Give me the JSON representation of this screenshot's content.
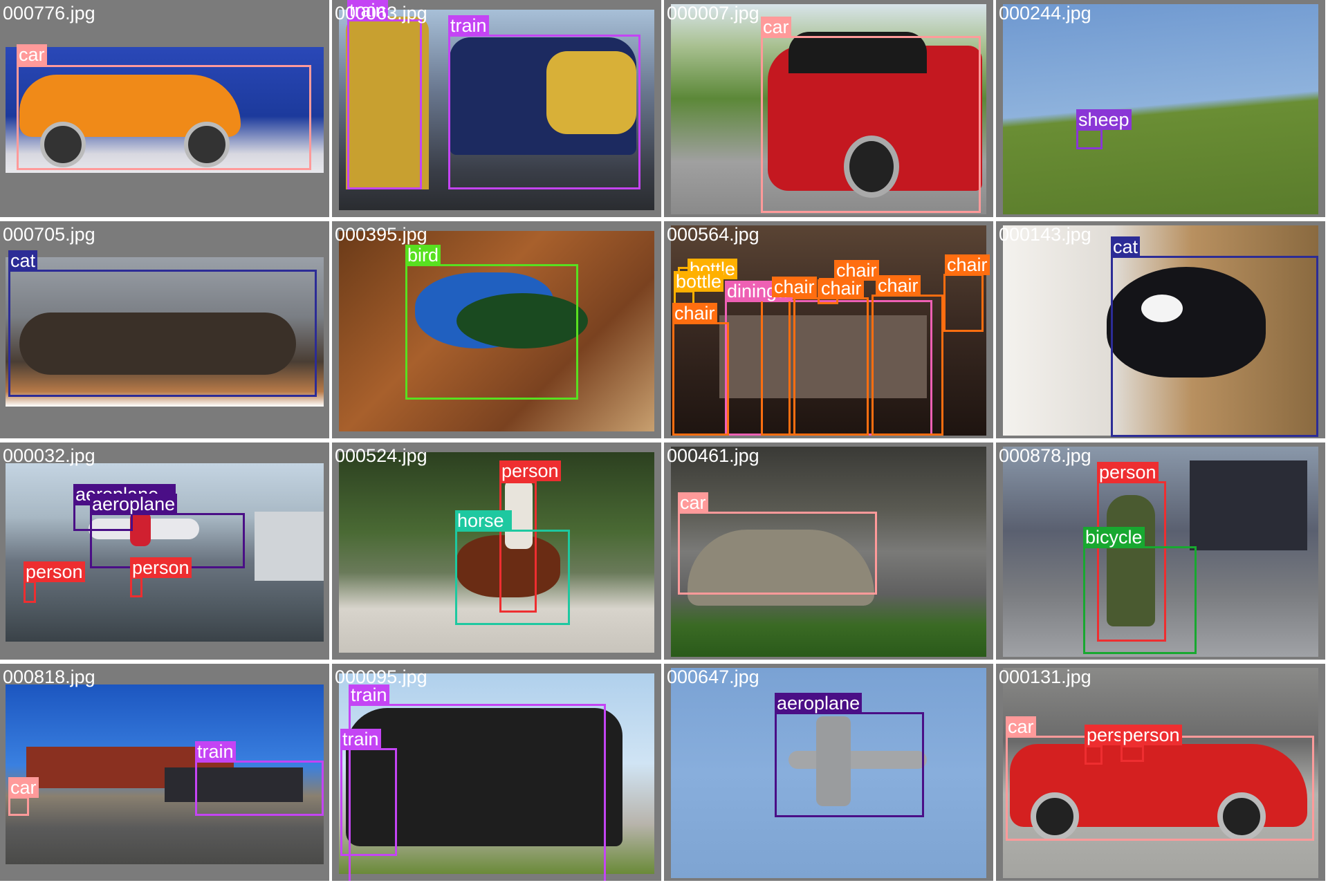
{
  "colors": {
    "car": "#ff9a9a",
    "train": "#c444f4",
    "sheep": "#8a36d6",
    "cat": "#2c2c96",
    "bird": "#58e020",
    "bottle": "#ffb000",
    "chair": "#ff6e10",
    "diningtable": "#ee60b4",
    "aeroplane": "#4a0e86",
    "person": "#ee2e30",
    "horse": "#1ec8a0",
    "bicycle": "#18a830"
  },
  "tiles": [
    {
      "name": "000776.jpg",
      "bg": "#2440a8",
      "labels": [
        "car"
      ]
    },
    {
      "name": "000063.jpg",
      "bg": "#4a5260",
      "labels": [
        "train",
        "train"
      ]
    },
    {
      "name": "000007.jpg",
      "bg": "#5a7a44",
      "labels": [
        "car"
      ]
    },
    {
      "name": "000244.jpg",
      "bg": "#7aa2d0",
      "labels": [
        "sheep"
      ]
    },
    {
      "name": "000705.jpg",
      "bg": "#4e4440",
      "labels": [
        "cat"
      ]
    },
    {
      "name": "000395.jpg",
      "bg": "#8c5028",
      "labels": [
        "bird"
      ]
    },
    {
      "name": "000564.jpg",
      "bg": "#2a1c16",
      "labels": [
        "bottle",
        "bottle",
        "diningtable",
        "chair",
        "chair",
        "chair",
        "chair",
        "chair",
        "chair"
      ]
    },
    {
      "name": "000143.jpg",
      "bg": "#e8e4de",
      "labels": [
        "cat"
      ]
    },
    {
      "name": "000032.jpg",
      "bg": "#8090a0",
      "labels": [
        "aeroplane",
        "aeroplane",
        "person",
        "person"
      ]
    },
    {
      "name": "000524.jpg",
      "bg": "#4a6a3a",
      "labels": [
        "person",
        "horse"
      ]
    },
    {
      "name": "000461.jpg",
      "bg": "#5a5a58",
      "labels": [
        "car"
      ]
    },
    {
      "name": "000878.jpg",
      "bg": "#6a7080",
      "labels": [
        "person",
        "bicycle"
      ]
    },
    {
      "name": "000818.jpg",
      "bg": "#3a70c8",
      "labels": [
        "train",
        "car"
      ]
    },
    {
      "name": "000095.jpg",
      "bg": "#8aa8c8",
      "labels": [
        "train",
        "train"
      ]
    },
    {
      "name": "000647.jpg",
      "bg": "#7ea6d6",
      "labels": [
        "aeroplane"
      ]
    },
    {
      "name": "000131.jpg",
      "bg": "#9a9a98",
      "labels": [
        "car",
        "person",
        "person"
      ]
    }
  ]
}
